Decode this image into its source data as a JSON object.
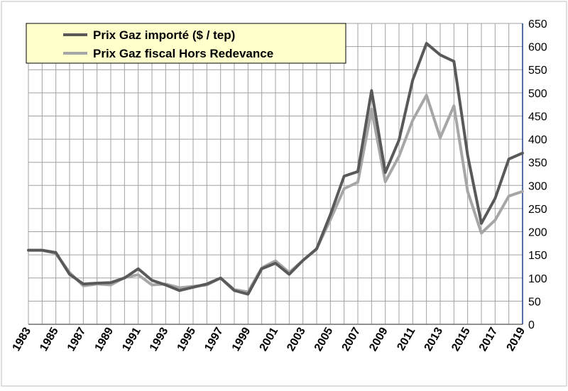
{
  "chart_data": {
    "type": "line",
    "title": "",
    "xlabel": "",
    "ylabel": "",
    "x": [
      1983,
      1984,
      1985,
      1986,
      1987,
      1988,
      1989,
      1990,
      1991,
      1992,
      1993,
      1994,
      1995,
      1996,
      1997,
      1998,
      1999,
      2000,
      2001,
      2002,
      2003,
      2004,
      2005,
      2006,
      2007,
      2008,
      2009,
      2010,
      2011,
      2012,
      2013,
      2014,
      2015,
      2016,
      2017,
      2018,
      2019
    ],
    "x_tick_labels": [
      "1983",
      "1985",
      "1987",
      "1989",
      "1991",
      "1993",
      "1995",
      "1997",
      "1999",
      "2001",
      "2003",
      "2005",
      "2007",
      "2009",
      "2011",
      "2013",
      "2015",
      "2017",
      "2019"
    ],
    "xlim": [
      1983,
      2019
    ],
    "ylim": [
      0,
      650
    ],
    "y_ticks": [
      0,
      50,
      100,
      150,
      200,
      250,
      300,
      350,
      400,
      450,
      500,
      550,
      600,
      650
    ],
    "y_axis_side": "right",
    "grid": true,
    "legend_position": "top-left",
    "series": [
      {
        "name": "Prix Gaz importé ($ / tep)",
        "color": "#595959",
        "values": [
          160,
          160,
          155,
          108,
          87,
          89,
          90,
          100,
          120,
          95,
          85,
          73,
          80,
          87,
          100,
          73,
          65,
          120,
          132,
          108,
          138,
          163,
          237,
          320,
          330,
          505,
          328,
          398,
          528,
          607,
          582,
          568,
          365,
          218,
          272,
          357,
          370
        ]
      },
      {
        "name": "Prix Gaz fiscal Hors Redevance",
        "color": "#a6a6a6",
        "values": [
          160,
          160,
          153,
          112,
          83,
          87,
          85,
          101,
          107,
          85,
          87,
          79,
          82,
          85,
          100,
          75,
          70,
          122,
          137,
          112,
          138,
          163,
          226,
          293,
          307,
          465,
          308,
          363,
          441,
          495,
          403,
          472,
          287,
          197,
          225,
          277,
          287
        ]
      }
    ]
  }
}
